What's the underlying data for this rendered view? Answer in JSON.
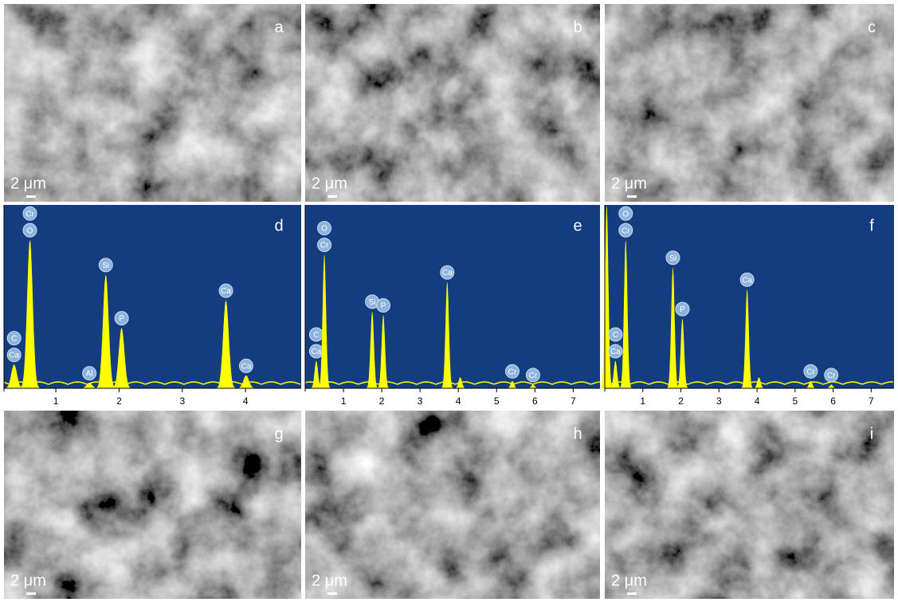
{
  "sem_panels": [
    {
      "letter": "a",
      "scale_bar": "2 μm"
    },
    {
      "letter": "b",
      "scale_bar": "2 μm"
    },
    {
      "letter": "c",
      "scale_bar": "2 μm"
    },
    {
      "letter": "g",
      "scale_bar": "2 μm"
    },
    {
      "letter": "h",
      "scale_bar": "2 μm"
    },
    {
      "letter": "i",
      "scale_bar": "2 μm"
    }
  ],
  "spectra": [
    {
      "letter": "d",
      "xlim": [
        0.18,
        4.88
      ],
      "xticks": [
        1,
        2,
        3,
        4
      ],
      "peaks": [
        {
          "x": 0.34,
          "height": 0.13,
          "labels": [
            "C",
            "Ca"
          ]
        },
        {
          "x": 0.59,
          "height": 0.81,
          "labels": [
            "Cr",
            "O"
          ]
        },
        {
          "x": 1.53,
          "height": 0.03,
          "labels": [
            "Al"
          ]
        },
        {
          "x": 1.79,
          "height": 0.62,
          "labels": [
            "Si"
          ]
        },
        {
          "x": 2.04,
          "height": 0.33,
          "labels": [
            "P"
          ]
        },
        {
          "x": 3.69,
          "height": 0.48,
          "labels": [
            "Ca"
          ]
        },
        {
          "x": 4.01,
          "height": 0.07,
          "labels": [
            "Ca"
          ]
        }
      ]
    },
    {
      "letter": "e",
      "xlim": [
        0,
        7.7
      ],
      "xticks": [
        1,
        2,
        3,
        4,
        5,
        6,
        7
      ],
      "peaks": [
        {
          "x": 0.29,
          "height": 0.15,
          "labels": [
            "C",
            "Ca"
          ]
        },
        {
          "x": 0.5,
          "height": 0.73,
          "labels": [
            "O",
            "Cr"
          ]
        },
        {
          "x": 1.75,
          "height": 0.42,
          "labels": [
            "Si"
          ]
        },
        {
          "x": 2.04,
          "height": 0.4,
          "labels": [
            "P"
          ]
        },
        {
          "x": 3.71,
          "height": 0.58,
          "labels": [
            "Ca"
          ]
        },
        {
          "x": 4.05,
          "height": 0.06
        },
        {
          "x": 5.41,
          "height": 0.04,
          "labels": [
            "Cr"
          ]
        },
        {
          "x": 5.95,
          "height": 0.02,
          "labels": [
            "Cr"
          ]
        }
      ]
    },
    {
      "letter": "f",
      "xlim": [
        0,
        7.6
      ],
      "xticks": [
        1,
        2,
        3,
        4,
        5,
        6,
        7
      ],
      "peaks": [
        {
          "x": 0.05,
          "height": 1.0
        },
        {
          "x": 0.28,
          "height": 0.15,
          "labels": [
            "C",
            "Ca"
          ]
        },
        {
          "x": 0.55,
          "height": 0.81,
          "labels": [
            "O",
            "Cr"
          ]
        },
        {
          "x": 1.79,
          "height": 0.66,
          "labels": [
            "Si"
          ]
        },
        {
          "x": 2.04,
          "height": 0.38,
          "labels": [
            "P"
          ]
        },
        {
          "x": 3.74,
          "height": 0.54,
          "labels": [
            "Ca"
          ]
        },
        {
          "x": 4.05,
          "height": 0.06
        },
        {
          "x": 5.41,
          "height": 0.04,
          "labels": [
            "Cr"
          ]
        },
        {
          "x": 5.95,
          "height": 0.02,
          "labels": [
            "Cr"
          ]
        }
      ]
    }
  ]
}
